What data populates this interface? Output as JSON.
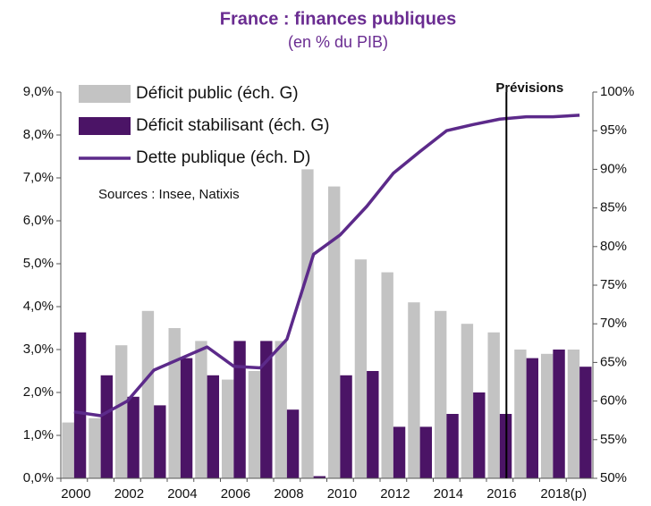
{
  "chart_data": {
    "type": "bar",
    "title": "France : finances publiques",
    "subtitle": "(en % du PIB)",
    "annotations": [
      "Sources : Insee, Natixis",
      "Prévisions"
    ],
    "categories": [
      "2000",
      null,
      "2002",
      null,
      "2004",
      null,
      "2006",
      null,
      "2008",
      null,
      "2010",
      null,
      "2012",
      null,
      "2014",
      null,
      "2016",
      null,
      "2018(p)",
      null
    ],
    "series": [
      {
        "name": "Déficit public (éch. G)",
        "color": "#c3c3c3",
        "kind": "bar",
        "values": [
          1.3,
          1.4,
          3.1,
          3.9,
          3.5,
          3.2,
          2.3,
          2.5,
          3.2,
          7.2,
          6.8,
          5.1,
          4.8,
          4.1,
          3.9,
          3.6,
          3.4,
          3.0,
          2.9,
          3.0
        ]
      },
      {
        "name": "Déficit stabilisant (éch. G)",
        "color": "#4b1466",
        "kind": "bar",
        "values": [
          3.4,
          2.4,
          1.9,
          1.7,
          2.8,
          2.4,
          3.2,
          3.2,
          1.6,
          0.05,
          2.4,
          2.5,
          1.2,
          1.2,
          1.5,
          2.0,
          1.5,
          2.8,
          3.0,
          2.6
        ]
      },
      {
        "name": "Dette publique (éch. D)",
        "color": "#5c2a8a",
        "kind": "line",
        "axis": "y2",
        "values": [
          58.6,
          58.1,
          60,
          64,
          65.5,
          67,
          64.5,
          64.3,
          68,
          79,
          81.5,
          85.2,
          89.5,
          92.3,
          95,
          95.8,
          96.5,
          96.8,
          96.8,
          97
        ]
      }
    ],
    "ylim": [
      0,
      9
    ],
    "yticks": [
      {
        "value": 0,
        "label": "0,0%"
      },
      {
        "value": 1,
        "label": "1,0%"
      },
      {
        "value": 2,
        "label": "2,0%"
      },
      {
        "value": 3,
        "label": "3,0%"
      },
      {
        "value": 4,
        "label": "4,0%"
      },
      {
        "value": 5,
        "label": "5,0%"
      },
      {
        "value": 6,
        "label": "6,0%"
      },
      {
        "value": 7,
        "label": "7,0%"
      },
      {
        "value": 8,
        "label": "8,0%"
      },
      {
        "value": 9,
        "label": "9,0%"
      }
    ],
    "y2lim": [
      50,
      100
    ],
    "y2ticks": [
      {
        "value": 50,
        "label": "50%"
      },
      {
        "value": 55,
        "label": "55%"
      },
      {
        "value": 60,
        "label": "60%"
      },
      {
        "value": 65,
        "label": "65%"
      },
      {
        "value": 70,
        "label": "70%"
      },
      {
        "value": 75,
        "label": "75%"
      },
      {
        "value": 80,
        "label": "80%"
      },
      {
        "value": 85,
        "label": "85%"
      },
      {
        "value": 90,
        "label": "90%"
      },
      {
        "value": 95,
        "label": "95%"
      },
      {
        "value": 100,
        "label": "100%"
      }
    ],
    "grid": false,
    "legend": "upper left"
  }
}
